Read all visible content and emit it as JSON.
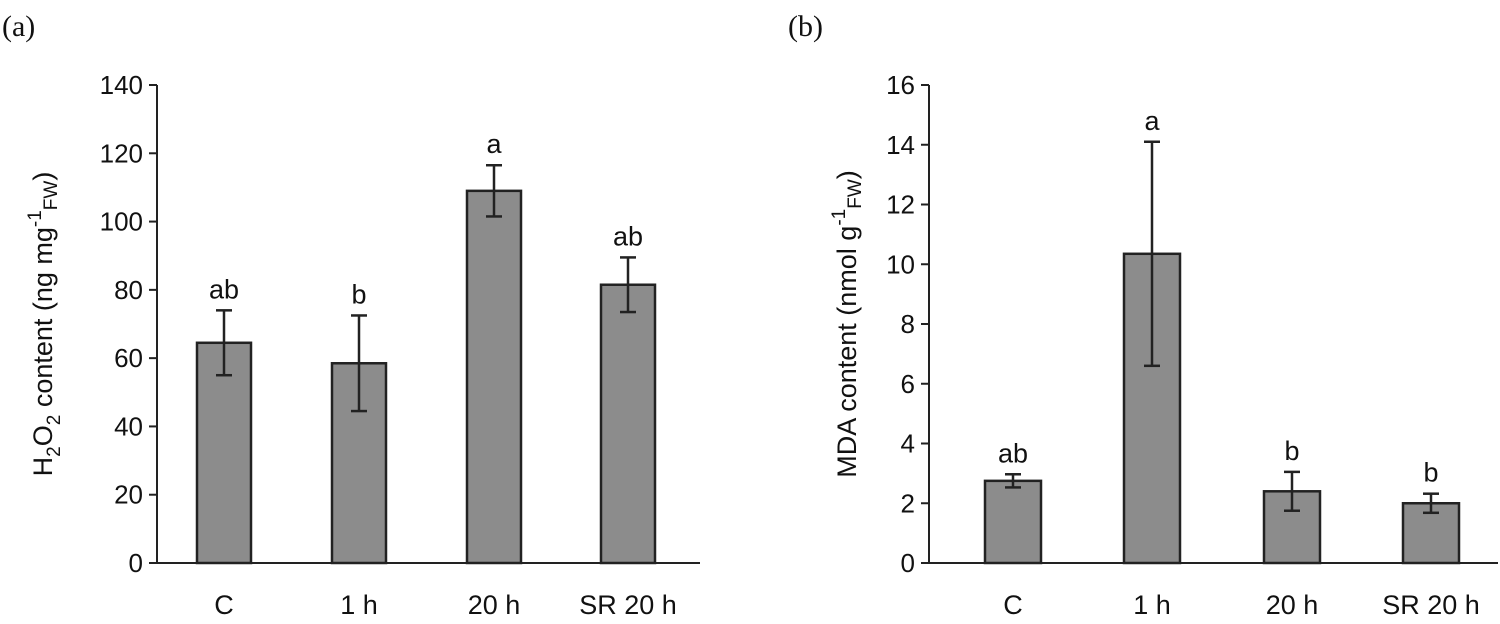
{
  "chart_data": [
    {
      "type": "bar",
      "panel_label": "(a)",
      "title": "",
      "xlabel": "",
      "ylabel_parts": [
        "H",
        "2",
        "O",
        "2",
        " content (ng mg",
        "-1",
        "FW",
        ")"
      ],
      "categories": [
        "C",
        "1 h",
        "20 h",
        "SR 20 h"
      ],
      "values": [
        64.5,
        58.5,
        109,
        81.5
      ],
      "errors": [
        9.5,
        14,
        7.5,
        8
      ],
      "significance": [
        "ab",
        "b",
        "a",
        "ab"
      ],
      "ylim": [
        0,
        140
      ],
      "yticks": [
        0,
        20,
        40,
        60,
        80,
        100,
        120,
        140
      ],
      "grid": false
    },
    {
      "type": "bar",
      "panel_label": "(b)",
      "title": "",
      "xlabel": "",
      "ylabel_parts": [
        "MDA content (nmol  g",
        "-1",
        "FW",
        ")"
      ],
      "categories": [
        "C",
        "1 h",
        "20 h",
        "SR 20 h"
      ],
      "values": [
        2.75,
        10.35,
        2.4,
        2.0
      ],
      "errors": [
        0.22,
        3.75,
        0.65,
        0.32
      ],
      "significance": [
        "ab",
        "a",
        "b",
        "b"
      ],
      "ylim": [
        0,
        16
      ],
      "yticks": [
        0,
        2,
        4,
        6,
        8,
        10,
        12,
        14,
        16
      ],
      "grid": false
    }
  ],
  "colors": {
    "bar_fill": "#8c8c8c",
    "stroke": "#222222"
  }
}
